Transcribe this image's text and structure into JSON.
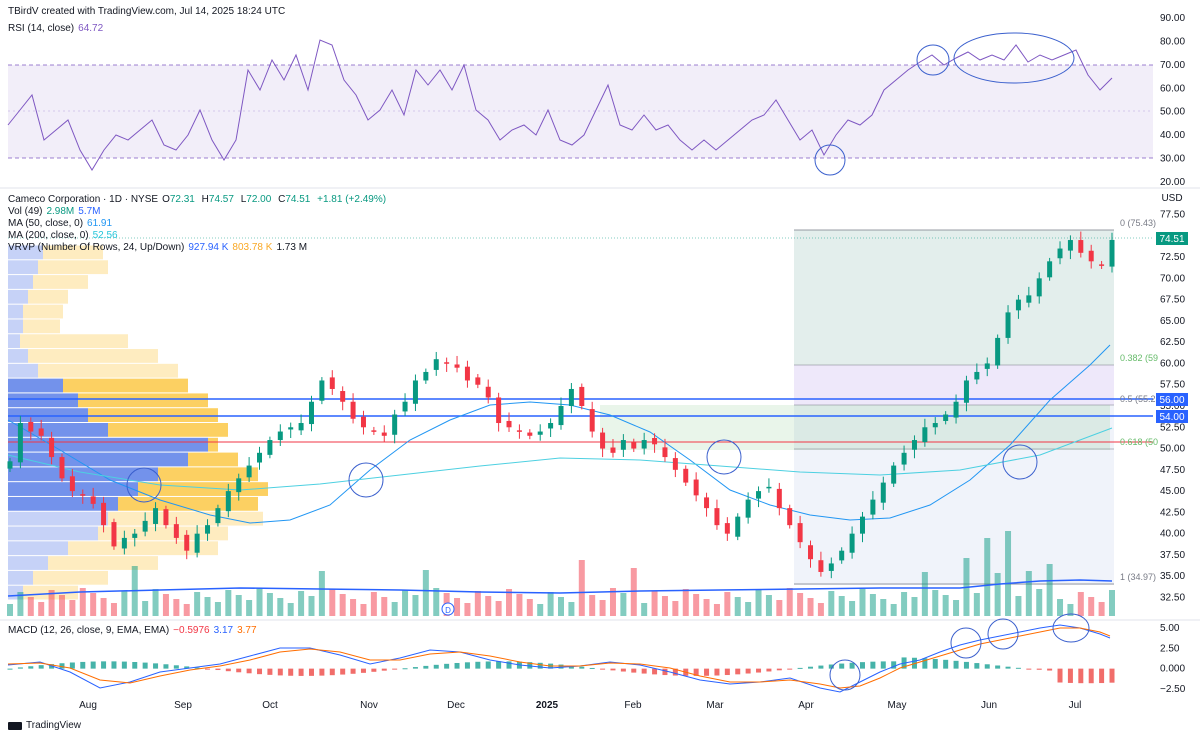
{
  "header": {
    "created_by": "TBirdV created with TradingView.com, Jul 14, 2025 18:24 UTC"
  },
  "rsi": {
    "label": "RSI (14, close)",
    "value": "64.72",
    "ticks": [
      "90.00",
      "80.00",
      "70.00",
      "60.00",
      "50.00",
      "40.00",
      "30.00",
      "20.00"
    ],
    "color": "#7e57c2"
  },
  "main": {
    "symbol": "Cameco Corporation · 1D · NYSE",
    "o_label": "O",
    "o": "72.31",
    "h_label": "H",
    "h": "74.57",
    "l_label": "L",
    "l": "72.00",
    "c_label": "C",
    "c": "74.51",
    "change": "+1.81 (+2.49%)",
    "vol_label": "Vol (49)",
    "vol1": "2.98M",
    "vol2": "5.7M",
    "ma50_label": "MA (50, close, 0)",
    "ma50": "61.91",
    "ma200_label": "MA (200, close, 0)",
    "ma200": "52.56",
    "vrvp_label": "VRVP (Number Of Rows, 24, Up/Down)",
    "vrvp_up": "927.94 K",
    "vrvp_down": "803.78 K",
    "vrvp_total": "1.73 M",
    "currency": "USD",
    "price_ticks": [
      "77.50",
      "75.00",
      "72.50",
      "70.00",
      "67.50",
      "65.00",
      "62.50",
      "60.00",
      "57.50",
      "55.00",
      "52.50",
      "50.00",
      "47.50",
      "45.00",
      "42.50",
      "40.00",
      "37.50",
      "35.00",
      "32.50"
    ],
    "last_price": "74.51",
    "level_56": "56.00",
    "level_54": "54.00",
    "fib_0": "0 (75.43)",
    "fib_382": "0.382 (59",
    "fib_5": "0.5 (55.2",
    "fib_618": "0.618 (50",
    "fib_1": "1 (34.97)",
    "earnings_marker": "D"
  },
  "macd": {
    "label": "MACD (12, 26, close, 9, EMA, EMA)",
    "v1": "−0.5976",
    "v2": "3.17",
    "v3": "3.77",
    "ticks": [
      "5.00",
      "2.50",
      "0.000",
      "−2.50"
    ]
  },
  "xaxis": {
    "labels": [
      "Aug",
      "Sep",
      "Oct",
      "Nov",
      "Dec",
      "2025",
      "Feb",
      "Mar",
      "Apr",
      "May",
      "Jun",
      "Jul"
    ]
  },
  "footer": {
    "brand": "TradingView"
  },
  "chart_data": {
    "type": "candlestick",
    "symbol": "Cameco Corporation · 1D · NYSE",
    "ylim": [
      31.5,
      78.5
    ],
    "month_labels": [
      "Aug",
      "Sep",
      "Oct",
      "Nov",
      "Dec",
      "2025",
      "Feb",
      "Mar",
      "Apr",
      "May",
      "Jun",
      "Jul"
    ],
    "close_path": [
      48.5,
      53,
      52,
      51.5,
      49,
      46.5,
      45,
      44.5,
      43.5,
      41,
      38.5,
      39.5,
      40,
      41.5,
      43,
      41,
      39.5,
      38,
      40,
      41,
      43,
      45,
      46.5,
      48,
      49.5,
      51,
      52,
      52.5,
      53,
      55.5,
      58,
      57,
      55.5,
      53.5,
      52.5,
      52,
      51.5,
      54,
      55.5,
      58,
      59,
      60.5,
      60,
      59.5,
      58,
      57.5,
      56,
      53,
      52.5,
      52,
      51.5,
      52,
      53,
      55,
      57,
      55,
      52,
      50,
      49.5,
      51,
      50,
      51,
      50.5,
      49,
      47.5,
      46,
      44.5,
      43,
      41,
      40,
      42,
      44,
      45,
      45.5,
      43,
      41,
      39,
      37,
      35.5,
      36.5,
      38,
      40,
      42,
      44,
      46,
      48,
      49.5,
      51,
      52.5,
      53,
      54,
      55.5,
      58,
      59,
      60,
      63,
      66,
      67.5,
      68,
      70,
      72,
      73.5,
      74.5,
      73,
      72,
      71.5,
      74.51
    ],
    "levels": [
      {
        "label": "56.00",
        "value": 56.0
      },
      {
        "label": "54.00",
        "value": 54.0
      }
    ],
    "fib_levels": [
      {
        "label": "0 (75.43)",
        "value": 75.43
      },
      {
        "label": "1 (34.97)",
        "value": 34.97
      }
    ],
    "rsi_levels": {
      "upper": 70,
      "lower": 30,
      "ylim": [
        20,
        90
      ]
    },
    "macd_ylim": [
      -3.5,
      6
    ]
  }
}
